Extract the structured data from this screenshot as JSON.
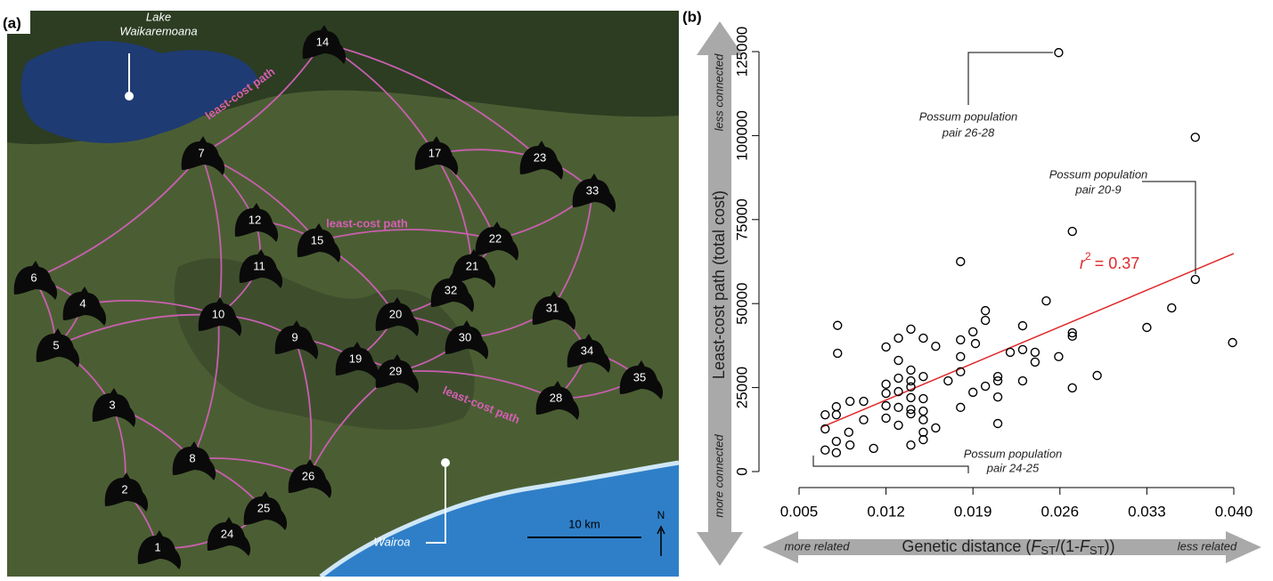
{
  "panel_labels": [
    "(a)",
    "(b)"
  ],
  "map": {
    "lake_label": [
      "Lake",
      "Waikaremoana"
    ],
    "town_label": "Wairoa",
    "path_labels": [
      "least-cost path",
      "least-cost path",
      "least-cost path"
    ],
    "scale_label": "10 km",
    "north_label": "N",
    "nodes": [
      "14",
      "7",
      "17",
      "23",
      "33",
      "12",
      "15",
      "22",
      "11",
      "21",
      "32",
      "6",
      "4",
      "10",
      "20",
      "31",
      "5",
      "9",
      "30",
      "19",
      "34",
      "29",
      "35",
      "28",
      "3",
      "8",
      "26",
      "2",
      "25",
      "24",
      "1"
    ]
  },
  "chart_data": {
    "type": "scatter",
    "x_label": [
      "Genetic distance (",
      "F",
      "ST",
      "/(1-",
      "F",
      "ST",
      "))"
    ],
    "y_label": "Least-cost path (total cost)",
    "x_arrow_labels": [
      "more related",
      "less related"
    ],
    "y_arrow_labels": [
      "more connected",
      "less connected"
    ],
    "xlim": [
      0.005,
      0.04
    ],
    "ylim": [
      0,
      125000
    ],
    "xticks": [
      0.005,
      0.012,
      0.019,
      0.026,
      0.033,
      {
        "value": 0.04,
        "label": "0.040"
      }
    ],
    "yticks": [
      0,
      25000,
      50000,
      75000,
      100000,
      125000
    ],
    "color": "#000000",
    "x": [
      0.0259,
      0.0369,
      0.027,
      0.0369,
      0.018,
      0.0399,
      0.035,
      0.033,
      0.0249,
      0.0081,
      0.02,
      0.02,
      0.019,
      0.018,
      0.0192,
      0.016,
      0.015,
      0.014,
      0.013,
      0.012,
      0.0081,
      0.023,
      0.022,
      0.023,
      0.024,
      0.024,
      0.027,
      0.027,
      0.0259,
      0.018,
      0.013,
      0.014,
      0.018,
      0.021,
      0.021,
      0.023,
      0.017,
      0.015,
      0.014,
      0.013,
      0.012,
      0.02,
      0.019,
      0.021,
      0.029,
      0.027,
      0.014,
      0.013,
      0.014,
      0.015,
      0.012,
      0.0102,
      0.012,
      0.018,
      0.015,
      0.014,
      0.014,
      0.013,
      0.008,
      0.0091,
      0.0071,
      0.008,
      0.0102,
      0.012,
      0.015,
      0.016,
      0.021,
      0.013,
      0.009,
      0.0071,
      0.015,
      0.015,
      0.014,
      0.008,
      0.0091,
      0.008,
      0.0071,
      0.011
    ],
    "values": [
      124700,
      99500,
      71500,
      57200,
      62500,
      38400,
      48700,
      42900,
      50800,
      43500,
      47900,
      45000,
      41600,
      39200,
      38100,
      37300,
      39700,
      42400,
      39700,
      37100,
      35200,
      43400,
      35500,
      36300,
      35500,
      32600,
      41300,
      40300,
      34200,
      34200,
      33100,
      30200,
      29700,
      28300,
      27000,
      27000,
      27000,
      28300,
      27000,
      27800,
      26000,
      25400,
      23600,
      22200,
      28600,
      24900,
      25200,
      23800,
      22000,
      21700,
      19600,
      20900,
      23300,
      19100,
      18000,
      18500,
      17200,
      19100,
      19300,
      20900,
      16900,
      16900,
      15400,
      15900,
      15400,
      13000,
      14300,
      13800,
      11700,
      12700,
      11700,
      9500,
      7900,
      9000,
      7900,
      5600,
      6400,
      6900
    ],
    "trend_line": {
      "color": "#e0282a",
      "x": [
        0.0068,
        0.04
      ],
      "y": [
        13200,
        64900
      ]
    },
    "trend_label": {
      "symbol": "r",
      "superscript": "2",
      "text": "= 0.37"
    },
    "annotations": [
      {
        "lines": [
          "Possum population",
          "pair 26-28"
        ]
      },
      {
        "lines": [
          "Possum population",
          "pair 20-9"
        ]
      },
      {
        "lines": [
          "Possum population",
          "pair 24-25"
        ]
      }
    ]
  }
}
